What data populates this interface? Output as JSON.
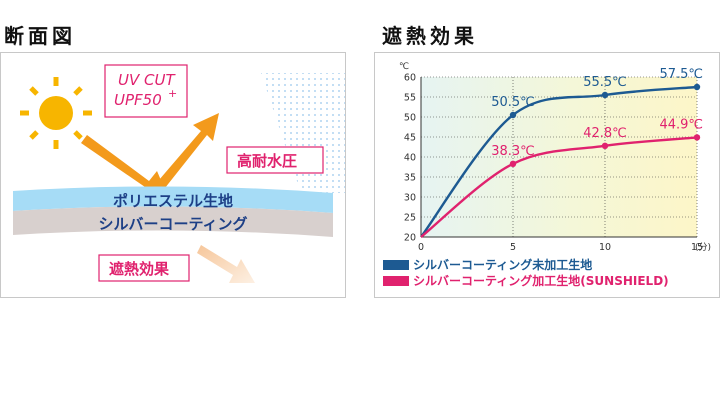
{
  "headings": {
    "cross_section": "断面図",
    "effect": "遮熱効果"
  },
  "cross_section": {
    "uv_line1": "UV CUT",
    "uv_line2": "UPF50",
    "uv_sup": "+",
    "water": "高耐水圧",
    "layer_top": "ポリエステル生地",
    "layer_bottom": "シルバーコーティング",
    "shield": "遮熱効果"
  },
  "chart_data": {
    "type": "line",
    "x_unit": "(分)",
    "y_unit": "℃",
    "xlim": [
      0,
      15
    ],
    "ylim": [
      20,
      60
    ],
    "x_ticks": [
      0,
      5,
      10,
      15
    ],
    "y_ticks": [
      20,
      25,
      30,
      35,
      40,
      45,
      50,
      55,
      60
    ],
    "grid": true,
    "legend_position": "bottom",
    "series": [
      {
        "name": "シルバーコーティング未加工生地",
        "color": "#1d5a92",
        "points": [
          [
            0,
            20
          ],
          [
            5,
            50.5
          ],
          [
            10,
            55.5
          ],
          [
            15,
            57.5
          ]
        ],
        "labels": [
          "50.5℃",
          "55.5℃",
          "57.5℃"
        ]
      },
      {
        "name": "シルバーコーティング加工生地(SUNSHIELD)",
        "color": "#e0226e",
        "points": [
          [
            0,
            20
          ],
          [
            5,
            38.3
          ],
          [
            10,
            42.8
          ],
          [
            15,
            44.9
          ]
        ],
        "labels": [
          "38.3℃",
          "42.8℃",
          "44.9℃"
        ]
      }
    ]
  }
}
